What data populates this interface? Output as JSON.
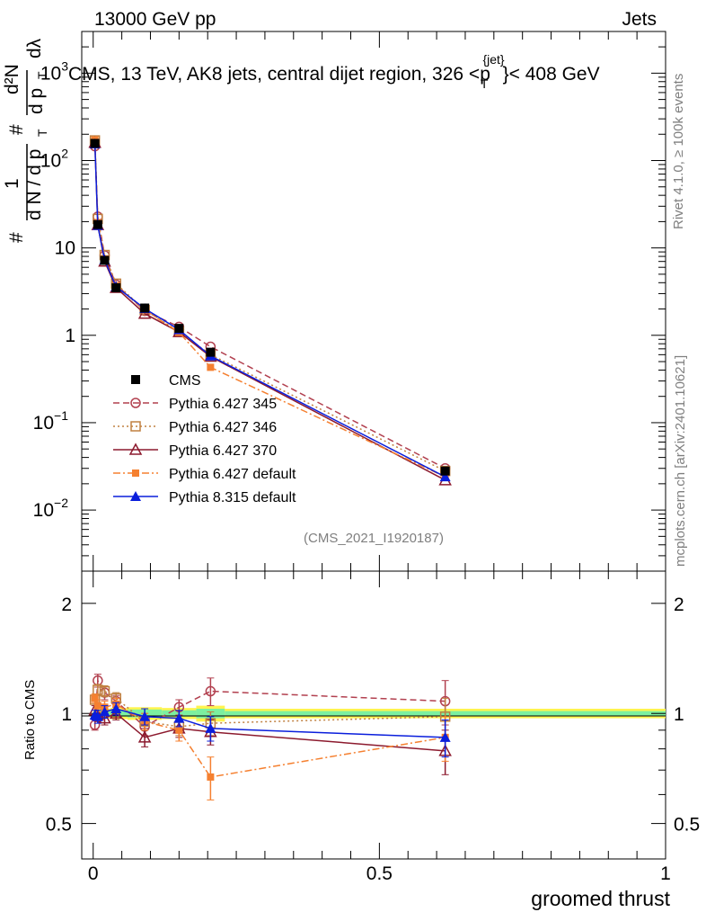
{
  "header": {
    "left": "13000 GeV pp",
    "right": "Jets"
  },
  "side_labels": {
    "top": "Rivet 4.1.0, ≥ 100k events",
    "bottom": "mcplots.cern.ch [arXiv:2401.10621]"
  },
  "chart_data": [
    {
      "type": "line",
      "title": "CMS, 13 TeV, AK8 jets, central dijet region, 326 <p_T^{jet}< 408 GeV",
      "title_parts": {
        "prefix": "CMS, 13 TeV, AK8 jets, central dijet region, 326 <",
        "p": "p",
        "sub": "T",
        "sup": "{jet}",
        "suffix": "}< 408 GeV"
      },
      "analysis_tag": "(CMS_2021_I1920187)",
      "ylabel": "1/(dN/dp_T) d²N/(dp_T dλ)",
      "ylabel_parts": {
        "lhs_num": "1",
        "lhs_den": "d N / d p",
        "lhs_hash": "#",
        "rhs_num": "d²N",
        "rhs_den": "d p",
        "rhs_hash": "#",
        "dlambda": "dλ",
        "sub_T": "T"
      },
      "yscale": "log",
      "ylim": [
        0.002,
        3000
      ],
      "xlim": [
        -0.02,
        1.0
      ],
      "ytick_labels": [
        {
          "value": 0.01,
          "base": "10",
          "exp": "−2"
        },
        {
          "value": 0.1,
          "base": "10",
          "exp": "−1"
        },
        {
          "value": 1,
          "base": "1",
          "exp": ""
        },
        {
          "value": 10,
          "base": "10",
          "exp": ""
        },
        {
          "value": 100,
          "base": "10",
          "exp": "2"
        },
        {
          "value": 1000,
          "base": "10",
          "exp": "3"
        }
      ],
      "x": [
        0.003,
        0.008,
        0.02,
        0.04,
        0.09,
        0.15,
        0.205,
        0.615
      ],
      "series": [
        {
          "name": "CMS",
          "color": "#000000",
          "marker": "square-filled",
          "dash": "none",
          "values": [
            157,
            18.5,
            7.2,
            3.5,
            2.05,
            1.2,
            0.64,
            0.028
          ]
        },
        {
          "name": "Pythia 6.427 345",
          "color": "#b2404f",
          "marker": "circle-open",
          "dash": "dashed",
          "values": [
            146,
            22.8,
            8.2,
            3.8,
            1.9,
            1.25,
            0.74,
            0.03
          ]
        },
        {
          "name": "Pythia 6.427 346",
          "color": "#c08040",
          "marker": "square-open",
          "dash": "dotted",
          "values": [
            170,
            21.5,
            8.3,
            3.9,
            1.95,
            1.1,
            0.6,
            0.028
          ]
        },
        {
          "name": "Pythia 6.427 370",
          "color": "#8c1a2e",
          "marker": "triangle-open",
          "dash": "solid",
          "values": [
            160,
            18.3,
            7.0,
            3.5,
            1.77,
            1.09,
            0.57,
            0.022
          ]
        },
        {
          "name": "Pythia 6.427 default",
          "color": "#f58030",
          "marker": "square-small-filled",
          "dash": "dashdot",
          "values": [
            172,
            19.5,
            7.5,
            3.7,
            1.95,
            1.08,
            0.43,
            0.024
          ]
        },
        {
          "name": "Pythia 8.315 default",
          "color": "#0a1edc",
          "marker": "triangle-filled",
          "dash": "solid",
          "values": [
            155,
            18.1,
            7.3,
            3.6,
            2.02,
            1.16,
            0.58,
            0.024
          ]
        }
      ]
    },
    {
      "type": "line",
      "ylabel": "Ratio to CMS",
      "xlabel": "groomed thrust",
      "yscale": "log",
      "ylim": [
        0.4,
        2.45
      ],
      "xlim": [
        -0.02,
        1.0
      ],
      "ytick_labels": [
        "0.5",
        "1",
        "2"
      ],
      "xtick_labels": [
        "0",
        "0.5",
        "1"
      ],
      "x": [
        0.003,
        0.008,
        0.02,
        0.04,
        0.09,
        0.15,
        0.205,
        0.615
      ],
      "series": [
        {
          "name": "Pythia 6.427 345",
          "values": [
            0.93,
            1.23,
            1.14,
            1.08,
            0.92,
            1.04,
            1.15,
            1.08
          ],
          "errors": [
            0.03,
            0.05,
            0.05,
            0.04,
            0.05,
            0.05,
            0.1,
            0.15
          ]
        },
        {
          "name": "Pythia 6.427 346",
          "values": [
            1.09,
            1.16,
            1.15,
            1.1,
            0.95,
            0.92,
            0.94,
            0.98
          ],
          "errors": [
            0.03,
            0.04,
            0.04,
            0.04,
            0.05,
            0.05,
            0.07,
            0.12
          ]
        },
        {
          "name": "Pythia 6.427 370",
          "values": [
            1.02,
            0.99,
            0.97,
            1.0,
            0.86,
            0.91,
            0.89,
            0.79
          ],
          "errors": [
            0.03,
            0.04,
            0.04,
            0.04,
            0.05,
            0.05,
            0.07,
            0.11
          ]
        },
        {
          "name": "Pythia 6.427 default",
          "values": [
            1.1,
            1.05,
            1.04,
            1.06,
            0.95,
            0.9,
            0.67,
            0.86
          ],
          "errors": [
            0.03,
            0.04,
            0.04,
            0.04,
            0.05,
            0.06,
            0.09,
            0.12
          ]
        },
        {
          "name": "Pythia 8.315 default",
          "values": [
            0.99,
            0.98,
            1.01,
            1.03,
            0.98,
            0.97,
            0.91,
            0.86
          ],
          "errors": [
            0.03,
            0.04,
            0.04,
            0.04,
            0.05,
            0.05,
            0.07,
            0.1
          ]
        }
      ],
      "cms_band": {
        "x": [
          [
            0.0,
            0.005
          ],
          [
            0.005,
            0.012
          ],
          [
            0.012,
            0.03
          ],
          [
            0.03,
            0.06
          ],
          [
            0.06,
            0.12
          ],
          [
            0.12,
            0.18
          ],
          [
            0.18,
            0.23
          ],
          [
            0.23,
            1.0
          ]
        ],
        "inner": [
          0.01,
          0.015,
          0.015,
          0.02,
          0.025,
          0.02,
          0.03,
          0.015
        ],
        "outer": [
          0.02,
          0.03,
          0.03,
          0.035,
          0.04,
          0.035,
          0.05,
          0.03
        ]
      },
      "band_colors": {
        "inner": "#7cf0a0",
        "outer": "#fff44f"
      }
    }
  ]
}
